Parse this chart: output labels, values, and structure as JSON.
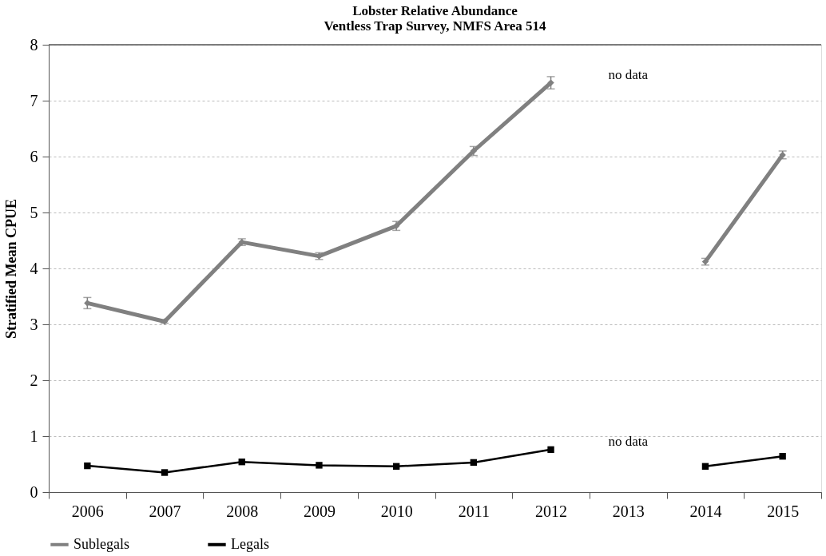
{
  "chart_data": {
    "type": "line",
    "title": "Lobster Relative Abundance\nVentless Trap Survey, NMFS Area 514",
    "ylabel": "Stratified Mean CPUE",
    "categories": [
      "2006",
      "2007",
      "2008",
      "2009",
      "2010",
      "2011",
      "2012",
      "2013",
      "2014",
      "2015"
    ],
    "series": [
      {
        "name": "Sublegals",
        "color": "#808080",
        "marker": "diamond",
        "values": [
          3.38,
          3.05,
          4.47,
          4.22,
          4.76,
          6.1,
          7.32,
          null,
          4.12,
          6.03
        ],
        "errors": [
          0.1,
          0.03,
          0.06,
          0.06,
          0.08,
          0.08,
          0.11,
          null,
          0.06,
          0.07
        ]
      },
      {
        "name": "Legals",
        "color": "#000000",
        "marker": "square",
        "values": [
          0.47,
          0.35,
          0.54,
          0.48,
          0.46,
          0.53,
          0.76,
          null,
          0.46,
          0.64
        ]
      }
    ],
    "ylim": [
      0,
      8
    ],
    "yticks": [
      0,
      1,
      2,
      3,
      4,
      5,
      6,
      7,
      8
    ],
    "grid": "y",
    "legend": "bottom",
    "line_style": "solid",
    "annotations": [
      "no data",
      "no data"
    ]
  }
}
